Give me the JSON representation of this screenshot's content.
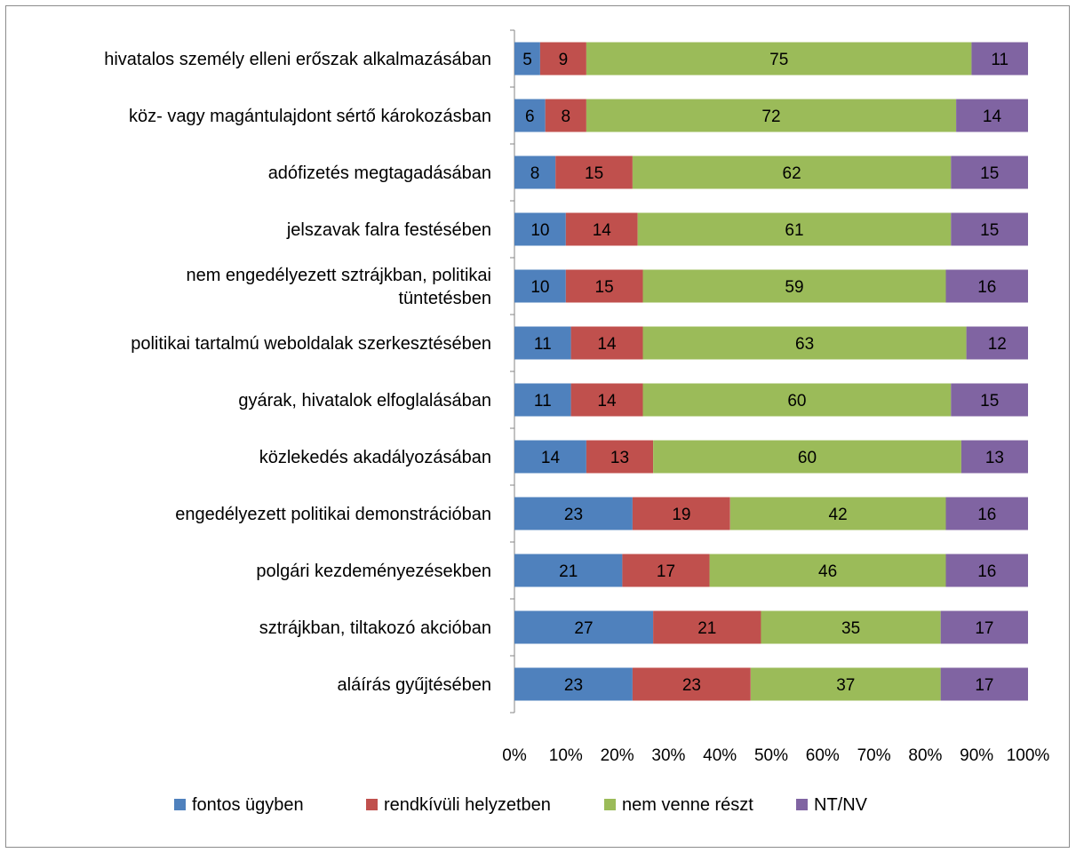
{
  "chart_data": {
    "type": "bar",
    "orientation": "horizontal",
    "stacked": "percent",
    "categories": [
      "hivatalos személy elleni erőszak alkalmazásában",
      "köz- vagy magántulajdont sértő károkozásban",
      "adófizetés megtagadásában",
      "jelszavak falra festésében",
      [
        "nem engedélyezett sztrájkban, politikai",
        "tüntetésben"
      ],
      "politikai tartalmú weboldalak szerkesztésében",
      "gyárak, hivatalok elfoglalásában",
      "közlekedés akadályozásában",
      "engedélyezett politikai demonstrációban",
      "polgári kezdeményezésekben",
      "sztrájkban, tiltakozó akcióban",
      "aláírás gyűjtésében"
    ],
    "series": [
      {
        "name": "fontos ügyben",
        "color": "#4f81bd",
        "values": [
          5,
          6,
          8,
          10,
          10,
          11,
          11,
          14,
          23,
          21,
          27,
          23
        ]
      },
      {
        "name": "rendkívüli helyzetben",
        "color": "#c0504d",
        "values": [
          9,
          8,
          15,
          14,
          15,
          14,
          14,
          13,
          19,
          17,
          21,
          23
        ]
      },
      {
        "name": "nem venne részt",
        "color": "#9bbb59",
        "values": [
          75,
          72,
          62,
          61,
          59,
          63,
          60,
          60,
          42,
          46,
          35,
          37
        ]
      },
      {
        "name": "NT/NV",
        "color": "#8064a2",
        "values": [
          11,
          14,
          15,
          15,
          16,
          12,
          15,
          13,
          16,
          16,
          17,
          17
        ]
      }
    ],
    "x_ticks": [
      "0%",
      "10%",
      "20%",
      "30%",
      "40%",
      "50%",
      "60%",
      "70%",
      "80%",
      "90%",
      "100%"
    ],
    "xlim": [
      0,
      100
    ],
    "grid": false,
    "legend_position": "bottom"
  }
}
